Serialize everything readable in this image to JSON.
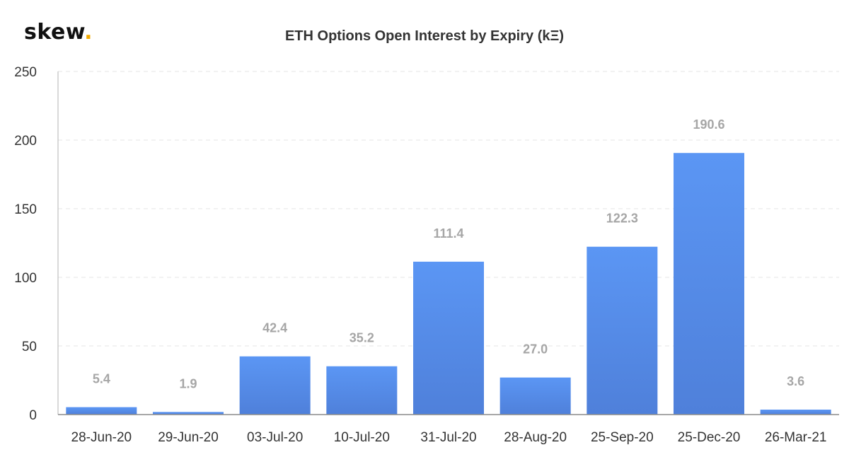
{
  "logo": {
    "text": "skew",
    "dot": ".",
    "dot_color": "#f2a900"
  },
  "chart_data": {
    "type": "bar",
    "title": "ETH Options Open Interest by Expiry (kΞ)",
    "xlabel": "",
    "ylabel": "",
    "categories": [
      "28-Jun-20",
      "29-Jun-20",
      "03-Jul-20",
      "10-Jul-20",
      "31-Jul-20",
      "28-Aug-20",
      "25-Sep-20",
      "25-Dec-20",
      "26-Mar-21"
    ],
    "values": [
      5.4,
      1.9,
      42.4,
      35.2,
      111.4,
      27.0,
      122.3,
      190.6,
      3.6
    ],
    "data_labels": [
      "5.4",
      "1.9",
      "42.4",
      "35.2",
      "111.4",
      "27.0",
      "122.3",
      "190.6",
      "3.6"
    ],
    "ylim": [
      0,
      250
    ],
    "yticks": [
      0,
      50,
      100,
      150,
      200,
      250
    ],
    "grid": true,
    "legend": "none",
    "colors": {
      "bar_top": "#5b96f4",
      "bar_bottom": "#4f80da",
      "label": "#a6a6a6",
      "grid": "#e6e6e6"
    }
  }
}
